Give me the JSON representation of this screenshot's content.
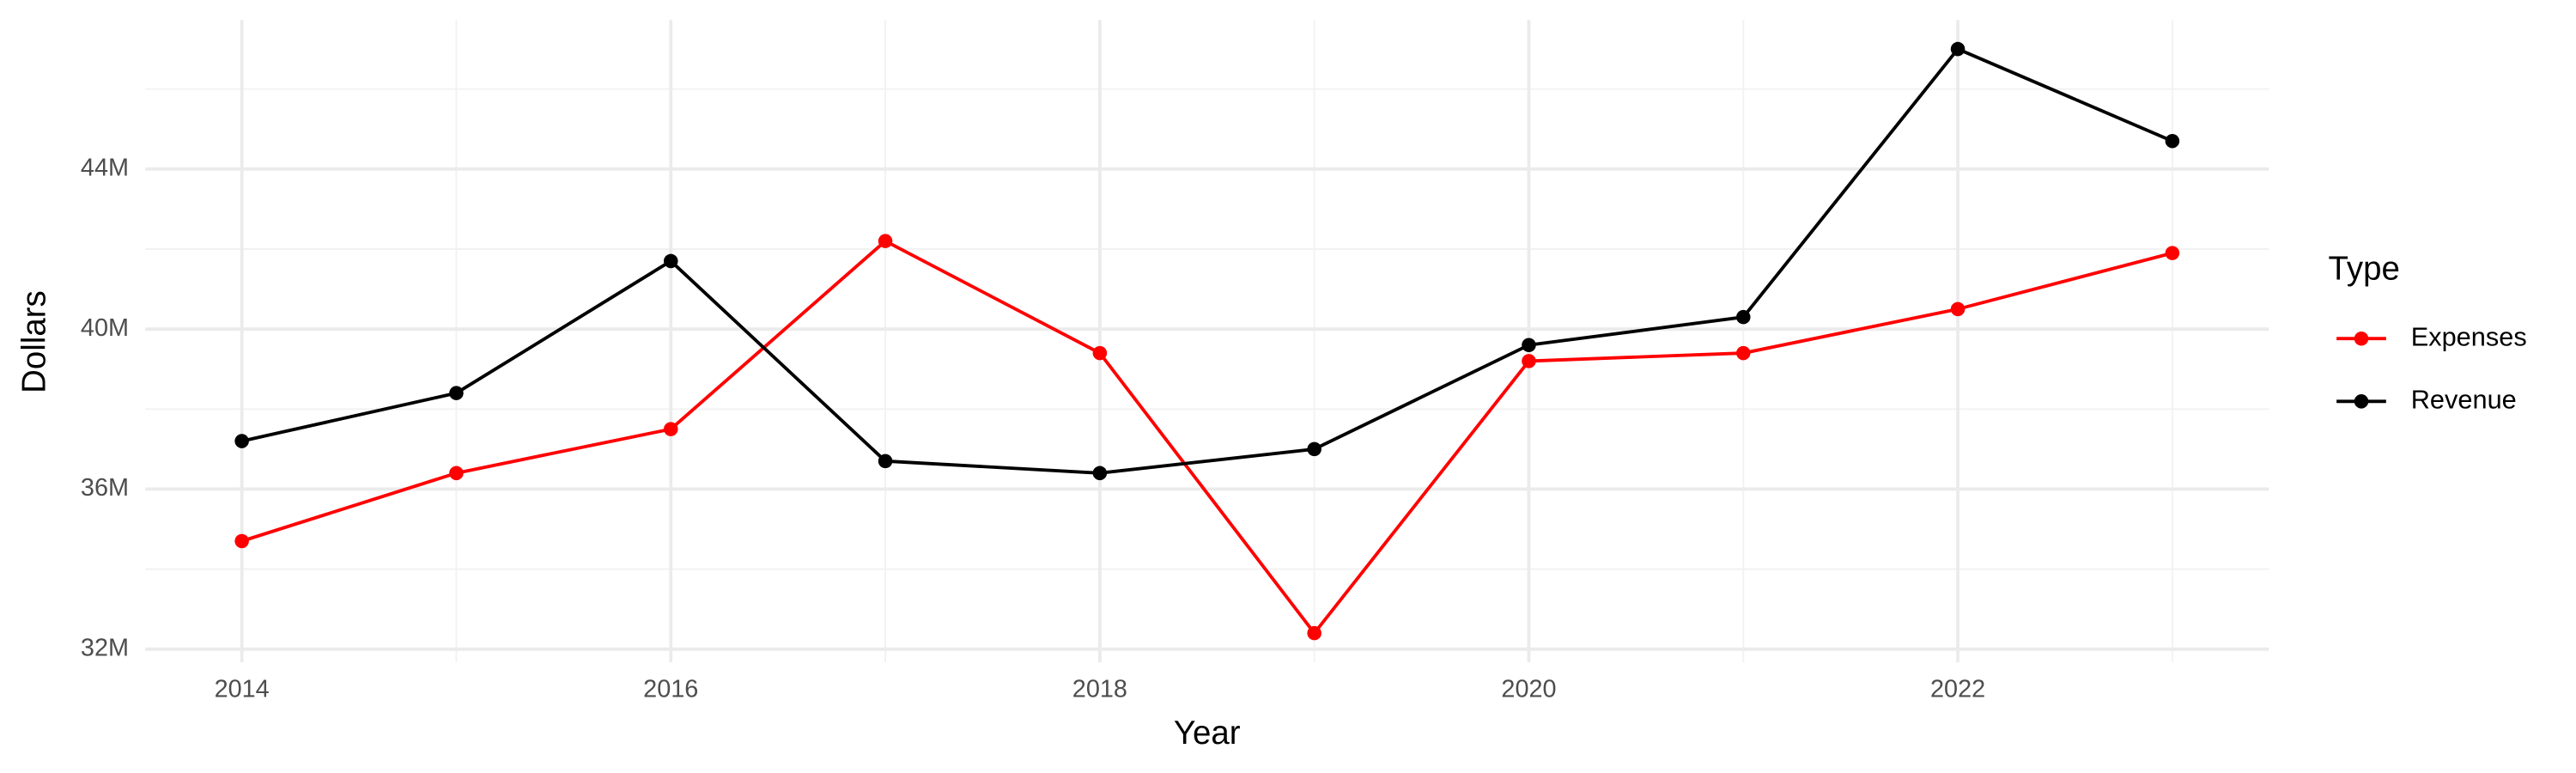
{
  "chart_data": {
    "type": "line",
    "x_label": "Year",
    "y_label": "Dollars",
    "x": [
      2014,
      2015,
      2016,
      2017,
      2018,
      2019,
      2020,
      2021,
      2022,
      2023
    ],
    "series": [
      {
        "name": "Expenses",
        "color": "#ff0000",
        "values": [
          34700000,
          36400000,
          37500000,
          42200000,
          39400000,
          32400000,
          39200000,
          39400000,
          40500000,
          41900000
        ]
      },
      {
        "name": "Revenue",
        "color": "#000000",
        "values": [
          37200000,
          38400000,
          41700000,
          36700000,
          36400000,
          37000000,
          39600000,
          40300000,
          47000000,
          44700000
        ]
      }
    ],
    "xlim": [
      2013.55,
      2023.45
    ],
    "xticks": [
      2014,
      2016,
      2018,
      2020,
      2022
    ],
    "ylim": [
      31670000,
      47730000
    ],
    "yticks": [
      {
        "value": 32000000,
        "label": "32M"
      },
      {
        "value": 36000000,
        "label": "36M"
      },
      {
        "value": 40000000,
        "label": "40M"
      },
      {
        "value": 44000000,
        "label": "44M"
      }
    ],
    "legend_title": "Type",
    "grid": true
  }
}
